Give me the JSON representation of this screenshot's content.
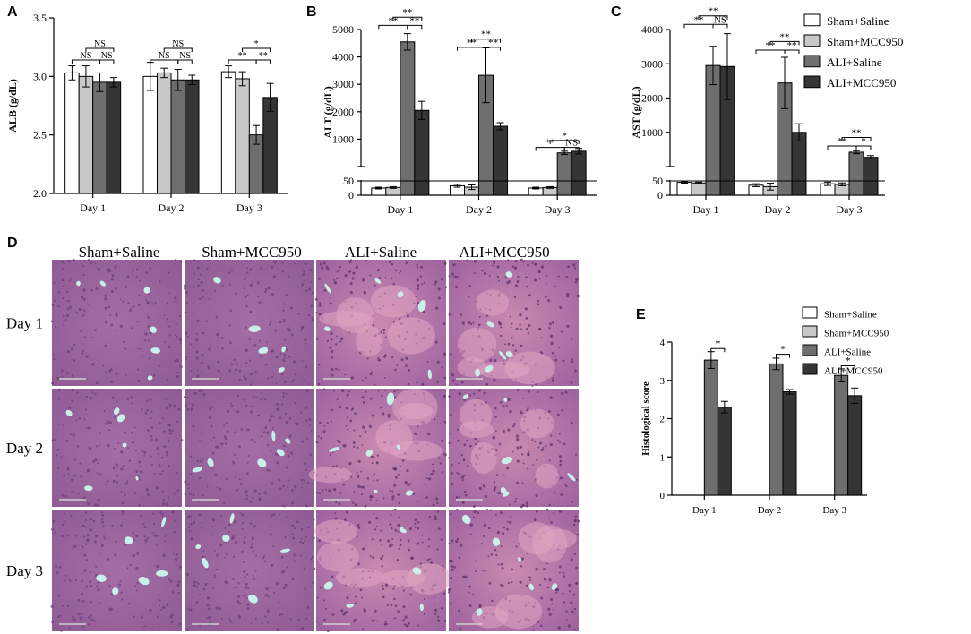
{
  "panel_labels": {
    "A": "A",
    "B": "B",
    "C": "C",
    "D": "D",
    "E": "E"
  },
  "colors": {
    "Sham+Saline": "#ffffff",
    "Sham+MCC950": "#c8c8c8",
    "ALI+Saline": "#6e6e6e",
    "ALI+MCC950": "#353535"
  },
  "legend_top": [
    "Sham+Saline",
    "Sham+MCC950",
    "ALI+Saline",
    "ALI+MCC950"
  ],
  "legend_e": [
    "Sham+Saline",
    "Sham+MCC950",
    "ALI+Saline",
    "ALI+MCC950"
  ],
  "chart_data": [
    {
      "id": "A",
      "type": "bar",
      "ylabel": "ALB (g/dL)",
      "categories": [
        "Day 1",
        "Day 2",
        "Day 3"
      ],
      "ylim": [
        2.0,
        3.5
      ],
      "yticks": [
        2.0,
        2.5,
        3.0,
        3.5
      ],
      "ytick_labels": [
        "2.0",
        "2.5",
        "3.0",
        "3.5"
      ],
      "series": [
        {
          "name": "Sham+Saline",
          "values": [
            3.03,
            3.0,
            3.04
          ],
          "errors": [
            0.06,
            0.12,
            0.05
          ]
        },
        {
          "name": "Sham+MCC950",
          "values": [
            3.0,
            3.03,
            2.98
          ],
          "errors": [
            0.09,
            0.04,
            0.06
          ]
        },
        {
          "name": "ALI+Saline",
          "values": [
            2.95,
            2.97,
            2.5
          ],
          "errors": [
            0.08,
            0.09,
            0.08
          ]
        },
        {
          "name": "ALI+MCC950",
          "values": [
            2.95,
            2.97,
            2.82
          ],
          "errors": [
            0.04,
            0.04,
            0.12
          ]
        }
      ],
      "annotations": [
        {
          "group": 0,
          "from": 0,
          "to": 2,
          "level": 3.14,
          "text": "NS"
        },
        {
          "group": 0,
          "from": 1,
          "to": 3,
          "level": 3.24,
          "text": "NS"
        },
        {
          "group": 0,
          "from": 2,
          "to": 3,
          "level": 3.14,
          "text": "NS"
        },
        {
          "group": 1,
          "from": 0,
          "to": 2,
          "level": 3.14,
          "text": "NS"
        },
        {
          "group": 1,
          "from": 1,
          "to": 3,
          "level": 3.24,
          "text": "NS"
        },
        {
          "group": 1,
          "from": 2,
          "to": 3,
          "level": 3.14,
          "text": "NS"
        },
        {
          "group": 2,
          "from": 0,
          "to": 2,
          "level": 3.14,
          "text": "**"
        },
        {
          "group": 2,
          "from": 1,
          "to": 3,
          "level": 3.24,
          "text": "*"
        },
        {
          "group": 2,
          "from": 2,
          "to": 3,
          "level": 3.14,
          "text": "**"
        }
      ]
    },
    {
      "id": "B",
      "type": "bar",
      "broken_axis": true,
      "ylabel": "ALT (g/dL)",
      "categories": [
        "Day 1",
        "Day 2",
        "Day 3"
      ],
      "low_range": [
        0,
        50
      ],
      "high_range": [
        0,
        5000
      ],
      "low_ticks": [
        0,
        50
      ],
      "high_ticks": [
        1000,
        2000,
        3000,
        4000,
        5000
      ],
      "series": [
        {
          "name": "Sham+Saline",
          "values": [
            25,
            33,
            25
          ],
          "errors": [
            3,
            5,
            3
          ]
        },
        {
          "name": "Sham+MCC950",
          "values": [
            27,
            28,
            27
          ],
          "errors": [
            3,
            8,
            3
          ]
        },
        {
          "name": "ALI+Saline",
          "values": [
            4550,
            3330,
            500
          ],
          "errors": [
            300,
            1000,
            60
          ]
        },
        {
          "name": "ALI+MCC950",
          "values": [
            2050,
            1470,
            560
          ],
          "errors": [
            330,
            130,
            100
          ]
        }
      ],
      "annotations": [
        {
          "group": 0,
          "from": 0,
          "to": 2,
          "level": 5150,
          "text": "**"
        },
        {
          "group": 0,
          "from": 1,
          "to": 3,
          "level": 5450,
          "text": "**"
        },
        {
          "group": 0,
          "from": 2,
          "to": 3,
          "level": 5150,
          "text": "**"
        },
        {
          "group": 1,
          "from": 0,
          "to": 2,
          "level": 4350,
          "text": "**"
        },
        {
          "group": 1,
          "from": 1,
          "to": 3,
          "level": 4650,
          "text": "**"
        },
        {
          "group": 1,
          "from": 2,
          "to": 3,
          "level": 4350,
          "text": "**"
        },
        {
          "group": 2,
          "from": 0,
          "to": 2,
          "level": 700,
          "text": "**"
        },
        {
          "group": 2,
          "from": 1,
          "to": 3,
          "level": 950,
          "text": "*"
        },
        {
          "group": 2,
          "from": 2,
          "to": 3,
          "level": 700,
          "text": "NS"
        }
      ]
    },
    {
      "id": "C",
      "type": "bar",
      "broken_axis": true,
      "ylabel": "AST (g/dL)",
      "categories": [
        "Day 1",
        "Day 2",
        "Day 3"
      ],
      "low_range": [
        0,
        50
      ],
      "high_range": [
        0,
        4000
      ],
      "low_ticks": [
        0,
        50
      ],
      "high_ticks": [
        1000,
        2000,
        3000,
        4000
      ],
      "series": [
        {
          "name": "Sham+Saline",
          "values": [
            45,
            35,
            40
          ],
          "errors": [
            3,
            5,
            6
          ]
        },
        {
          "name": "Sham+MCC950",
          "values": [
            43,
            30,
            38
          ],
          "errors": [
            3,
            12,
            5
          ]
        },
        {
          "name": "ALI+Saline",
          "values": [
            2950,
            2440,
            420
          ],
          "errors": [
            560,
            750,
            45
          ]
        },
        {
          "name": "ALI+MCC950",
          "values": [
            2920,
            1000,
            270
          ],
          "errors": [
            960,
            250,
            50
          ]
        }
      ],
      "annotations": [
        {
          "group": 0,
          "from": 0,
          "to": 2,
          "level": 4150,
          "text": "**"
        },
        {
          "group": 0,
          "from": 1,
          "to": 3,
          "level": 4400,
          "text": "**"
        },
        {
          "group": 0,
          "from": 2,
          "to": 3,
          "level": 4150,
          "text": "NS"
        },
        {
          "group": 1,
          "from": 0,
          "to": 2,
          "level": 3400,
          "text": "**"
        },
        {
          "group": 1,
          "from": 1,
          "to": 3,
          "level": 3650,
          "text": "**"
        },
        {
          "group": 1,
          "from": 2,
          "to": 3,
          "level": 3400,
          "text": "**"
        },
        {
          "group": 2,
          "from": 0,
          "to": 2,
          "level": 600,
          "text": "**"
        },
        {
          "group": 2,
          "from": 1,
          "to": 3,
          "level": 850,
          "text": "**"
        },
        {
          "group": 2,
          "from": 2,
          "to": 3,
          "level": 600,
          "text": "*"
        }
      ]
    },
    {
      "id": "E",
      "type": "bar",
      "ylabel": "Histological score",
      "categories": [
        "Day 1",
        "Day 2",
        "Day 3"
      ],
      "ylim": [
        0,
        4
      ],
      "yticks": [
        0,
        1,
        2,
        3,
        4
      ],
      "series": [
        {
          "name": "Sham+Saline",
          "values": [
            0,
            0,
            0
          ],
          "errors": [
            0,
            0,
            0
          ]
        },
        {
          "name": "Sham+MCC950",
          "values": [
            0,
            0,
            0
          ],
          "errors": [
            0,
            0,
            0
          ]
        },
        {
          "name": "ALI+Saline",
          "values": [
            3.53,
            3.43,
            3.13
          ],
          "errors": [
            0.22,
            0.15,
            0.17
          ]
        },
        {
          "name": "ALI+MCC950",
          "values": [
            2.3,
            2.7,
            2.6
          ],
          "errors": [
            0.15,
            0.06,
            0.2
          ]
        }
      ],
      "annotations": [
        {
          "group": 0,
          "from": 2,
          "to": 3,
          "level": 3.83,
          "text": "*"
        },
        {
          "group": 1,
          "from": 2,
          "to": 3,
          "level": 3.68,
          "text": "*"
        },
        {
          "group": 2,
          "from": 2,
          "to": 3,
          "level": 3.38,
          "text": "*"
        }
      ]
    }
  ],
  "histology": {
    "columns": [
      "Sham+Saline",
      "Sham+MCC950",
      "ALI+Saline",
      "ALI+MCC950"
    ],
    "rows": [
      "Day 1",
      "Day 2",
      "Day 3"
    ]
  }
}
